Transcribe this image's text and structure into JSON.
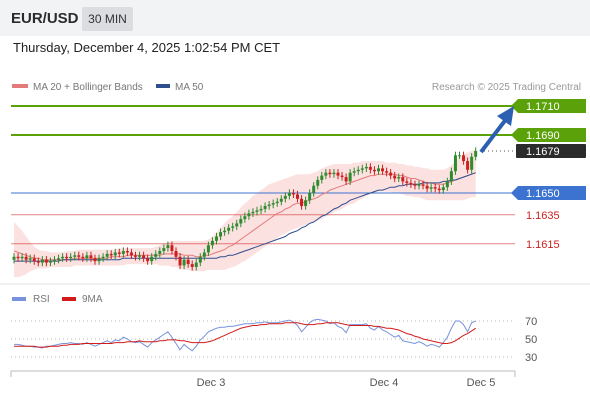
{
  "header": {
    "symbol": "EUR/USD",
    "timeframe": "30 MIN",
    "timestamp": "Thursday, December 4, 2025 1:02:54 PM CET"
  },
  "colors": {
    "green": "#5aa10a",
    "blue_level": "#3c73d1",
    "red_level": "#cc1f1f",
    "bollinger_fill": "#fbdcdc",
    "ma20": "#e57a7a",
    "ma50": "#2f4f8f",
    "candle_up": "#2e8b2e",
    "candle_down": "#cc2020",
    "arrow": "#2b5fb0",
    "rsi": "#7793dd",
    "rsi_ma": "#d21b1b"
  },
  "legend": {
    "ma20_label": "MA 20 + Bollinger Bands",
    "ma50_label": "MA 50",
    "credit": "Research © 2025 Trading Central"
  },
  "levels": [
    {
      "label": "1.1710",
      "value": 1.171,
      "kind": "resistance",
      "badge": true
    },
    {
      "label": "1.1690",
      "value": 1.169,
      "kind": "resistance",
      "badge": true
    },
    {
      "label": "1.1679",
      "value": 1.1679,
      "kind": "current",
      "badge": true
    },
    {
      "label": "1.1650",
      "value": 1.165,
      "kind": "pivot",
      "badge": true
    },
    {
      "label": "1.1635",
      "value": 1.1635,
      "kind": "support",
      "badge": false
    },
    {
      "label": "1.1615",
      "value": 1.1615,
      "kind": "support",
      "badge": false
    }
  ],
  "rsi_panel": {
    "rsi_label": "RSI",
    "ma_label": "9MA",
    "ticks": [
      "70",
      "50",
      "30"
    ],
    "tick_values": [
      70,
      50,
      30
    ]
  },
  "xaxis": {
    "labels": [
      "Dec 3",
      "Dec 4",
      "Dec 5"
    ]
  },
  "chart_data": {
    "type": "line",
    "ylim": [
      1.1595,
      1.172
    ],
    "close": [
      1.1606,
      1.1605,
      1.1606,
      1.1604,
      1.1605,
      1.1603,
      1.1602,
      1.1604,
      1.1602,
      1.1603,
      1.1604,
      1.1605,
      1.1606,
      1.1605,
      1.1606,
      1.1607,
      1.1606,
      1.1605,
      1.1607,
      1.1605,
      1.1603,
      1.1605,
      1.1606,
      1.1608,
      1.1607,
      1.1609,
      1.1608,
      1.161,
      1.1609,
      1.1607,
      1.1606,
      1.1607,
      1.1605,
      1.1603,
      1.1606,
      1.1608,
      1.161,
      1.1612,
      1.1614,
      1.161,
      1.1606,
      1.16,
      1.1604,
      1.1601,
      1.1599,
      1.1602,
      1.1606,
      1.1609,
      1.1614,
      1.1617,
      1.162,
      1.1623,
      1.1624,
      1.1626,
      1.1627,
      1.1629,
      1.1632,
      1.1634,
      1.1636,
      1.1637,
      1.1638,
      1.1639,
      1.1641,
      1.1642,
      1.1643,
      1.1644,
      1.1646,
      1.1648,
      1.165,
      1.1649,
      1.1646,
      1.1641,
      1.1645,
      1.165,
      1.1655,
      1.1659,
      1.1662,
      1.1664,
      1.1663,
      1.1664,
      1.1662,
      1.1661,
      1.1658,
      1.1664,
      1.1665,
      1.1666,
      1.1667,
      1.1668,
      1.1666,
      1.1665,
      1.1667,
      1.1665,
      1.1664,
      1.1662,
      1.166,
      1.1661,
      1.1658,
      1.1657,
      1.1656,
      1.1655,
      1.1656,
      1.1655,
      1.1653,
      1.1654,
      1.1653,
      1.1652,
      1.1654,
      1.1658,
      1.1665,
      1.1676,
      1.1676,
      1.1672,
      1.1666,
      1.1675,
      1.1679
    ],
    "open": [
      1.1604,
      1.1606,
      1.1605,
      1.1606,
      1.1604,
      1.1605,
      1.1603,
      1.1602,
      1.1604,
      1.1602,
      1.1603,
      1.1604,
      1.1605,
      1.1606,
      1.1605,
      1.1606,
      1.1607,
      1.1606,
      1.1605,
      1.1607,
      1.1605,
      1.1603,
      1.1605,
      1.1606,
      1.1608,
      1.1607,
      1.1609,
      1.1608,
      1.161,
      1.1609,
      1.1607,
      1.1606,
      1.1607,
      1.1605,
      1.1603,
      1.1606,
      1.1608,
      1.161,
      1.1612,
      1.1614,
      1.161,
      1.1606,
      1.16,
      1.1604,
      1.1601,
      1.1599,
      1.1602,
      1.1606,
      1.1609,
      1.1614,
      1.1617,
      1.162,
      1.1623,
      1.1624,
      1.1626,
      1.1627,
      1.1629,
      1.1632,
      1.1634,
      1.1636,
      1.1637,
      1.1638,
      1.1639,
      1.1641,
      1.1642,
      1.1643,
      1.1644,
      1.1646,
      1.1648,
      1.165,
      1.1649,
      1.1646,
      1.1641,
      1.1645,
      1.165,
      1.1655,
      1.1659,
      1.1662,
      1.1664,
      1.1663,
      1.1664,
      1.1662,
      1.1661,
      1.1658,
      1.1664,
      1.1665,
      1.1666,
      1.1667,
      1.1668,
      1.1666,
      1.1665,
      1.1667,
      1.1665,
      1.1664,
      1.1662,
      1.166,
      1.1661,
      1.1658,
      1.1657,
      1.1656,
      1.1655,
      1.1656,
      1.1655,
      1.1653,
      1.1654,
      1.1653,
      1.1652,
      1.1654,
      1.1658,
      1.1665,
      1.1676,
      1.1676,
      1.1672,
      1.1666,
      1.1675
    ],
    "ma20": [
      1.161,
      1.1609,
      1.1608,
      1.1607,
      1.1606,
      1.1605,
      1.1605,
      1.1604,
      1.1604,
      1.1604,
      1.1604,
      1.1604,
      1.1604,
      1.1604,
      1.1604,
      1.1605,
      1.1605,
      1.1605,
      1.1605,
      1.1605,
      1.1605,
      1.1605,
      1.1605,
      1.1605,
      1.1606,
      1.1606,
      1.1606,
      1.1606,
      1.1607,
      1.1607,
      1.1607,
      1.1607,
      1.1607,
      1.1607,
      1.1607,
      1.1607,
      1.1607,
      1.1608,
      1.1608,
      1.1608,
      1.1608,
      1.1608,
      1.1607,
      1.1607,
      1.1607,
      1.1606,
      1.1606,
      1.1607,
      1.1607,
      1.1608,
      1.1609,
      1.161,
      1.1611,
      1.1613,
      1.1614,
      1.1616,
      1.1618,
      1.162,
      1.1622,
      1.1624,
      1.1626,
      1.1628,
      1.163,
      1.1632,
      1.1634,
      1.1636,
      1.1637,
      1.1639,
      1.164,
      1.1642,
      1.1643,
      1.1643,
      1.1644,
      1.1645,
      1.1646,
      1.1647,
      1.1649,
      1.165,
      1.1652,
      1.1653,
      1.1654,
      1.1655,
      1.1656,
      1.1657,
      1.1658,
      1.1659,
      1.166,
      1.1661,
      1.1662,
      1.1662,
      1.1663,
      1.1663,
      1.1663,
      1.1663,
      1.1663,
      1.1662,
      1.1662,
      1.1661,
      1.166,
      1.166,
      1.1659,
      1.1658,
      1.1657,
      1.1657,
      1.1656,
      1.1656,
      1.1656,
      1.1657,
      1.1658,
      1.1659,
      1.166,
      1.1661,
      1.1662,
      1.1663,
      1.1664
    ],
    "bb_upper": [
      1.163,
      1.1627,
      1.1624,
      1.162,
      1.1616,
      1.1613,
      1.1611,
      1.161,
      1.161,
      1.1609,
      1.1609,
      1.1609,
      1.1609,
      1.161,
      1.161,
      1.161,
      1.1611,
      1.1611,
      1.1611,
      1.1611,
      1.1611,
      1.1611,
      1.1611,
      1.1611,
      1.1611,
      1.1611,
      1.1612,
      1.1612,
      1.1612,
      1.1612,
      1.1612,
      1.1612,
      1.1612,
      1.1612,
      1.1612,
      1.1613,
      1.1614,
      1.1615,
      1.1616,
      1.1617,
      1.1617,
      1.1617,
      1.1617,
      1.1617,
      1.1617,
      1.1617,
      1.1617,
      1.1617,
      1.1618,
      1.162,
      1.1623,
      1.1626,
      1.1629,
      1.1632,
      1.1634,
      1.1637,
      1.164,
      1.1643,
      1.1645,
      1.1648,
      1.165,
      1.1652,
      1.1654,
      1.1656,
      1.1657,
      1.1658,
      1.1659,
      1.166,
      1.1661,
      1.1662,
      1.1663,
      1.1663,
      1.1663,
      1.1663,
      1.1664,
      1.1665,
      1.1667,
      1.1668,
      1.1669,
      1.167,
      1.167,
      1.167,
      1.167,
      1.167,
      1.1671,
      1.1671,
      1.1672,
      1.1672,
      1.1672,
      1.1672,
      1.1672,
      1.1672,
      1.1671,
      1.1671,
      1.1671,
      1.167,
      1.167,
      1.1669,
      1.1669,
      1.1668,
      1.1668,
      1.1667,
      1.1667,
      1.1666,
      1.1666,
      1.1666,
      1.1666,
      1.1667,
      1.1669,
      1.1672,
      1.1675,
      1.1677,
      1.1678,
      1.1679,
      1.168
    ],
    "bb_lower": [
      1.1592,
      1.1592,
      1.1593,
      1.1594,
      1.1596,
      1.1597,
      1.1598,
      1.1598,
      1.1598,
      1.1599,
      1.1599,
      1.1599,
      1.1599,
      1.1599,
      1.1599,
      1.16,
      1.16,
      1.16,
      1.16,
      1.16,
      1.16,
      1.16,
      1.16,
      1.16,
      1.16,
      1.16,
      1.16,
      1.16,
      1.1601,
      1.1601,
      1.1601,
      1.1601,
      1.1601,
      1.1601,
      1.1601,
      1.1601,
      1.16,
      1.16,
      1.16,
      1.1599,
      1.1599,
      1.1598,
      1.1597,
      1.1597,
      1.1596,
      1.1596,
      1.1596,
      1.1596,
      1.1597,
      1.1597,
      1.1597,
      1.1597,
      1.1597,
      1.1598,
      1.1599,
      1.16,
      1.1602,
      1.1603,
      1.1605,
      1.1607,
      1.1609,
      1.1611,
      1.1613,
      1.1615,
      1.1617,
      1.1619,
      1.1621,
      1.1622,
      1.1624,
      1.1625,
      1.1626,
      1.1627,
      1.1628,
      1.1629,
      1.163,
      1.1631,
      1.1632,
      1.1634,
      1.1635,
      1.1637,
      1.1638,
      1.1639,
      1.1641,
      1.1642,
      1.1643,
      1.1645,
      1.1646,
      1.1648,
      1.1649,
      1.165,
      1.1651,
      1.1651,
      1.1651,
      1.1651,
      1.165,
      1.165,
      1.1649,
      1.1648,
      1.1648,
      1.1647,
      1.1647,
      1.1646,
      1.1645,
      1.1645,
      1.1645,
      1.1645,
      1.1645,
      1.1645,
      1.1645,
      1.1645,
      1.1645,
      1.1645,
      1.1646,
      1.1647,
      1.1647
    ],
    "ma50": [
      1.1603,
      1.1603,
      1.1603,
      1.1603,
      1.1603,
      1.1603,
      1.1603,
      1.1603,
      1.1603,
      1.1603,
      1.1603,
      1.1603,
      1.1604,
      1.1604,
      1.1604,
      1.1604,
      1.1604,
      1.1604,
      1.1604,
      1.1604,
      1.1604,
      1.1604,
      1.1604,
      1.1604,
      1.1604,
      1.1604,
      1.1604,
      1.1605,
      1.1605,
      1.1605,
      1.1605,
      1.1605,
      1.1605,
      1.1605,
      1.1605,
      1.1605,
      1.1605,
      1.1605,
      1.1605,
      1.1605,
      1.1605,
      1.1605,
      1.1605,
      1.1605,
      1.1605,
      1.1605,
      1.1605,
      1.1605,
      1.1605,
      1.1605,
      1.1605,
      1.1606,
      1.1606,
      1.1607,
      1.1607,
      1.1608,
      1.1609,
      1.161,
      1.1611,
      1.1612,
      1.1613,
      1.1614,
      1.1615,
      1.1616,
      1.1617,
      1.1618,
      1.1619,
      1.162,
      1.1622,
      1.1623,
      1.1624,
      1.1626,
      1.1627,
      1.1629,
      1.163,
      1.1632,
      1.1634,
      1.1635,
      1.1637,
      1.1639,
      1.164,
      1.1642,
      1.1643,
      1.1645,
      1.1646,
      1.1647,
      1.1648,
      1.1649,
      1.165,
      1.1651,
      1.1652,
      1.1652,
      1.1653,
      1.1654,
      1.1654,
      1.1655,
      1.1655,
      1.1656,
      1.1656,
      1.1656,
      1.1656,
      1.1657,
      1.1657,
      1.1657,
      1.1657,
      1.1657,
      1.1658,
      1.1658,
      1.1659,
      1.1659,
      1.166,
      1.1661,
      1.1662,
      1.1663,
      1.1664
    ],
    "rsi": [
      44,
      44,
      43,
      42,
      42,
      41,
      41,
      40,
      42,
      42,
      43,
      44,
      45,
      45,
      46,
      45,
      45,
      44,
      46,
      44,
      42,
      44,
      46,
      48,
      46,
      49,
      48,
      52,
      50,
      47,
      46,
      47,
      44,
      41,
      46,
      49,
      52,
      55,
      58,
      52,
      45,
      38,
      44,
      40,
      37,
      42,
      49,
      53,
      58,
      60,
      62,
      63,
      63,
      64,
      64,
      65,
      66,
      67,
      67,
      67,
      68,
      68,
      69,
      68,
      68,
      68,
      69,
      70,
      71,
      69,
      65,
      58,
      63,
      68,
      71,
      72,
      71,
      70,
      67,
      68,
      64,
      62,
      57,
      66,
      66,
      66,
      66,
      67,
      62,
      60,
      64,
      60,
      58,
      55,
      52,
      54,
      48,
      47,
      46,
      45,
      47,
      45,
      42,
      44,
      43,
      41,
      46,
      52,
      62,
      70,
      70,
      66,
      58,
      68,
      70
    ],
    "rsi_ma": [
      42,
      42,
      42,
      42,
      42,
      42,
      41,
      41,
      41,
      42,
      42,
      42,
      43,
      43,
      44,
      44,
      44,
      45,
      45,
      45,
      45,
      45,
      45,
      45,
      45,
      46,
      46,
      46,
      47,
      47,
      47,
      48,
      47,
      47,
      47,
      47,
      48,
      48,
      49,
      49,
      49,
      48,
      48,
      47,
      46,
      46,
      46,
      46,
      47,
      48,
      50,
      52,
      54,
      56,
      58,
      60,
      62,
      63,
      64,
      65,
      65,
      66,
      66,
      67,
      67,
      67,
      67,
      68,
      68,
      68,
      68,
      67,
      66,
      66,
      66,
      67,
      67,
      68,
      68,
      68,
      68,
      67,
      66,
      65,
      65,
      65,
      65,
      65,
      65,
      64,
      64,
      63,
      62,
      62,
      61,
      60,
      58,
      56,
      55,
      53,
      52,
      50,
      49,
      48,
      47,
      46,
      45,
      45,
      46,
      48,
      51,
      54,
      56,
      59,
      62
    ]
  }
}
